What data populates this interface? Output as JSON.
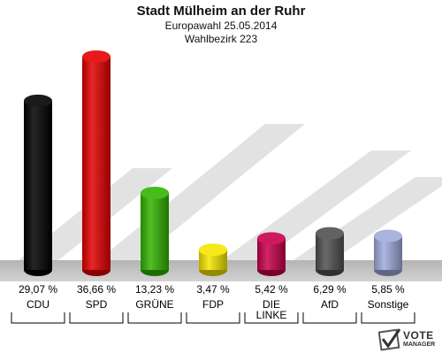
{
  "header": {
    "title": "Stadt Mülheim an der Ruhr",
    "subtitle_election": "Europawahl 25.05.2014",
    "subtitle_district": "Wahlbezirk 223"
  },
  "logo": {
    "line1": "VOTE",
    "line2": "MANAGER"
  },
  "chart_data": {
    "type": "bar",
    "title": "Stadt Mülheim an der Ruhr",
    "subtitle": "Europawahl 25.05.2014 / Wahlbezirk 223",
    "categories": [
      "CDU",
      "SPD",
      "GRÜNE",
      "FDP",
      "DIE LINKE",
      "AfD",
      "Sonstige"
    ],
    "values": [
      29.07,
      36.66,
      13.23,
      3.47,
      5.42,
      6.29,
      5.85
    ],
    "value_labels": [
      "29,07 %",
      "36,66 %",
      "13,23 %",
      "3,47 %",
      "5,42 %",
      "6,29 %",
      "5,85 %"
    ],
    "colors": [
      "#000000",
      "#e30000",
      "#32b400",
      "#f5e600",
      "#c8004b",
      "#505050",
      "#a0aadc"
    ],
    "unit": "%",
    "ylim": [
      0,
      40
    ],
    "grid": false,
    "legend": "none"
  }
}
